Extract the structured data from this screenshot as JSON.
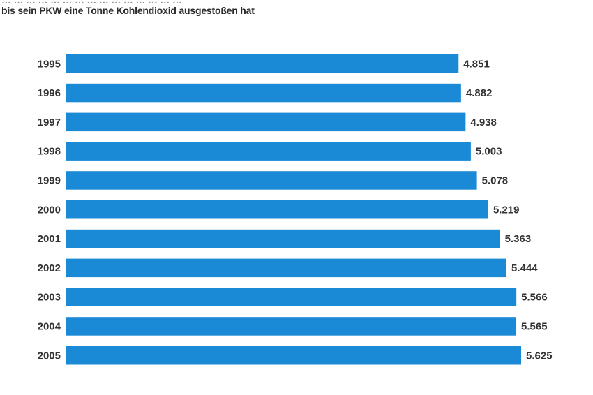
{
  "header": {
    "line1": "… … … … … … … … … … … … … … …",
    "line2": "bis sein PKW eine Tonne Kohlendioxid ausgestoßen hat"
  },
  "chart_data": {
    "type": "bar",
    "orientation": "horizontal",
    "categories": [
      "1995",
      "1996",
      "1997",
      "1998",
      "1999",
      "2000",
      "2001",
      "2002",
      "2003",
      "2004",
      "2005"
    ],
    "values": [
      4851,
      4882,
      4938,
      5003,
      5078,
      5219,
      5363,
      5444,
      5566,
      5565,
      5625
    ],
    "value_labels": [
      "4.851",
      "4.882",
      "4.938",
      "5.003",
      "5.078",
      "5.219",
      "5.363",
      "5.444",
      "5.566",
      "5.565",
      "5.625"
    ],
    "title": "",
    "xlabel": "",
    "ylabel": "",
    "grid": false,
    "legend": "none",
    "bar_color": "#1a8ad6"
  }
}
